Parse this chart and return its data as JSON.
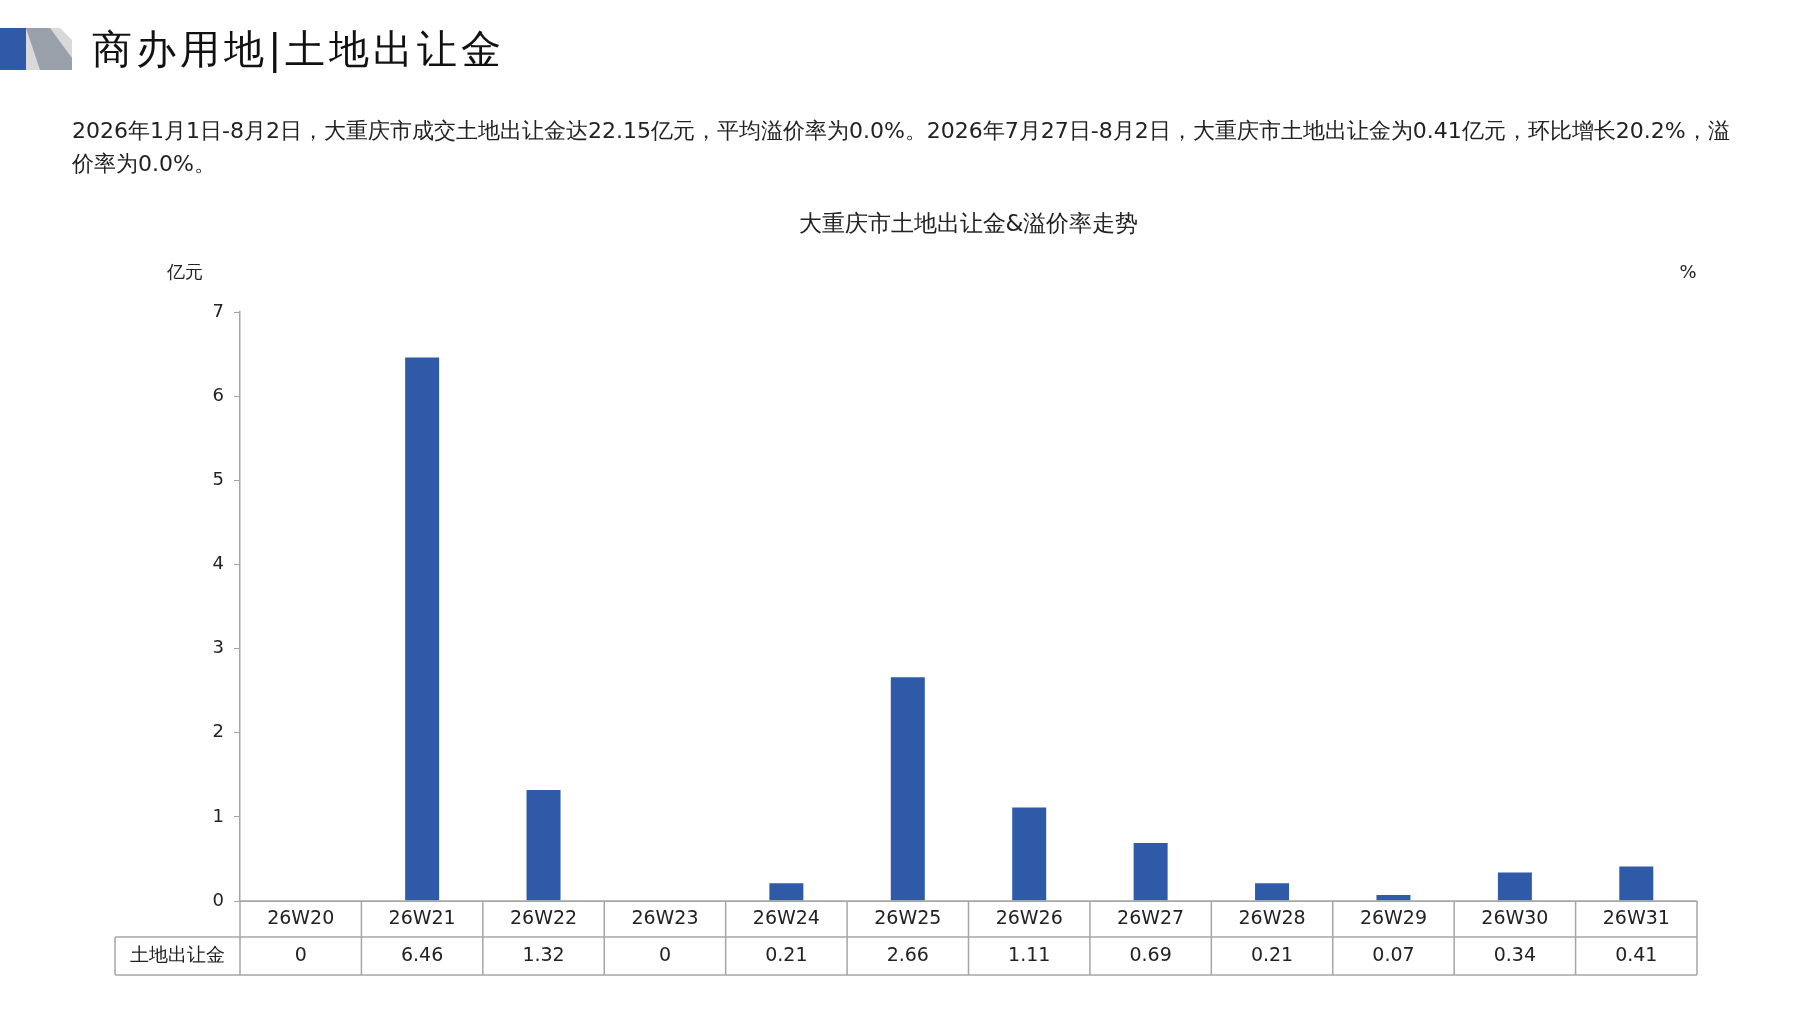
{
  "chart_data": {
    "type": "bar",
    "title": "大重庆市土地出让金&溢价率走势",
    "annotations": [
      "商办用地|土地出让金",
      "2026年1月1日-8月2日，大重庆市成交土地出让金达22.15亿元，平均溢价率为0.0%。2026年7月27日-8月2日，大重庆市土地出让金为0.41亿元，环比增长20.2%，溢价率为0.0%。"
    ],
    "ylabel": "亿元",
    "y2label": "%",
    "categories": [
      "26W20",
      "26W21",
      "26W22",
      "26W23",
      "26W24",
      "26W25",
      "26W26",
      "26W27",
      "26W28",
      "26W29",
      "26W30",
      "26W31"
    ],
    "series": [
      {
        "name": "土地出让金",
        "color": "#2e5aa8",
        "values": [
          0,
          6.46,
          1.32,
          0,
          0.21,
          2.66,
          1.11,
          0.69,
          0.21,
          0.07,
          0.34,
          0.41
        ]
      }
    ],
    "ylim": [
      0,
      7
    ],
    "yticks": [
      0,
      1,
      2,
      3,
      4,
      5,
      6,
      7
    ],
    "grid": false,
    "data_labels": true
  }
}
